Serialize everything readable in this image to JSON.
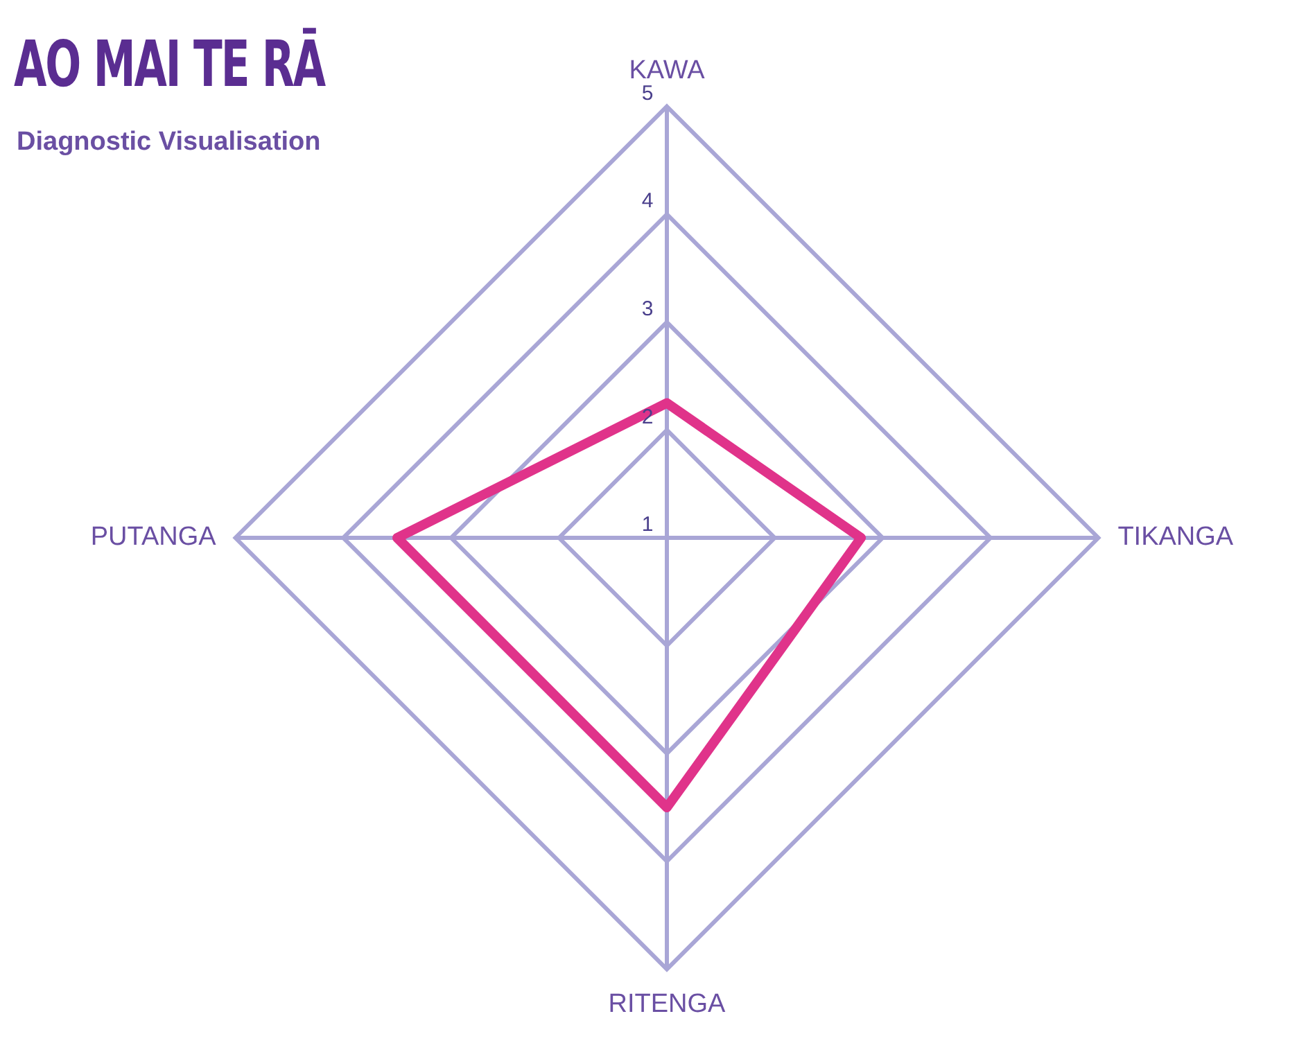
{
  "chart_data": {
    "type": "radar",
    "title": "AO MAI TE RĀ",
    "subtitle": "Diagnostic Visualisation",
    "categories": [
      "KAWA",
      "TIKANGA",
      "RITENGA",
      "PUTANGA"
    ],
    "series": [
      {
        "color": "#e0338a",
        "values": [
          2.25,
          2.8,
          3.5,
          3.5
        ]
      }
    ],
    "ylim": [
      1,
      5
    ],
    "yticks": [
      1,
      2,
      3,
      4,
      5
    ],
    "grid": true,
    "legend": false,
    "marker": "none"
  }
}
